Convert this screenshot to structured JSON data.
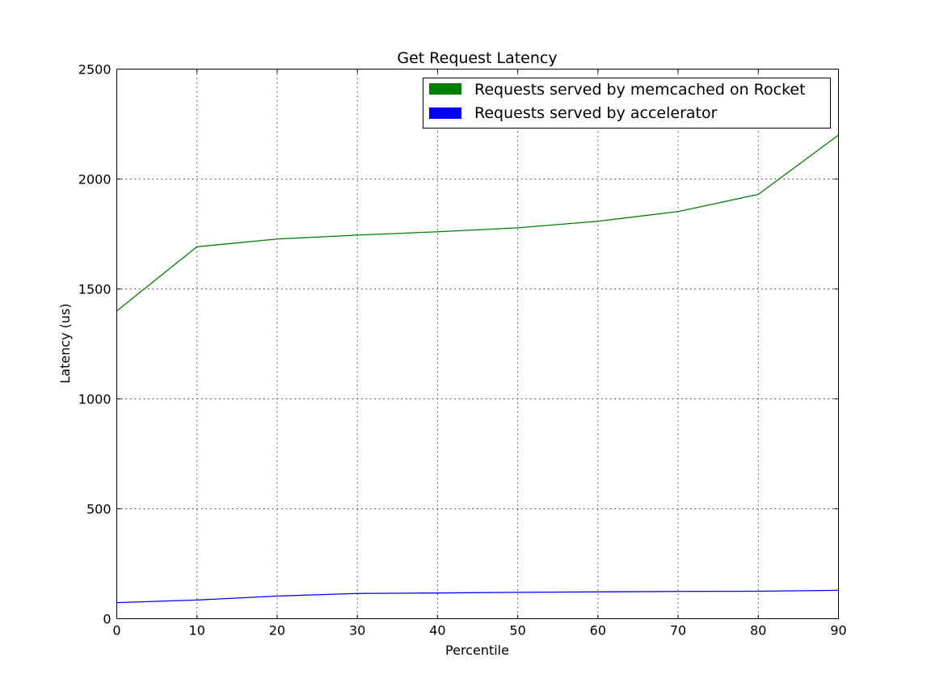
{
  "chart_data": {
    "type": "line",
    "title": "Get Request Latency",
    "xlabel": "Percentile",
    "ylabel": "Latency (us)",
    "xlim": [
      0,
      90
    ],
    "ylim": [
      0,
      2500
    ],
    "grid": true,
    "legend_position": "top-right",
    "x": [
      0,
      10,
      20,
      30,
      40,
      50,
      60,
      70,
      80,
      90
    ],
    "x_ticks": [
      "0",
      "10",
      "20",
      "30",
      "40",
      "50",
      "60",
      "70",
      "80",
      "90"
    ],
    "y_ticks": [
      "0",
      "500",
      "1000",
      "1500",
      "2000",
      "2500"
    ],
    "series": [
      {
        "name": "Requests served by memcached on Rocket",
        "color": "#008000",
        "values": [
          1400,
          1692,
          1727,
          1745,
          1760,
          1778,
          1808,
          1852,
          1930,
          2200
        ]
      },
      {
        "name": "Requests served by accelerator",
        "color": "#0000ff",
        "values": [
          73,
          85,
          103,
          115,
          117,
          120,
          122,
          124,
          125,
          129
        ]
      }
    ]
  }
}
